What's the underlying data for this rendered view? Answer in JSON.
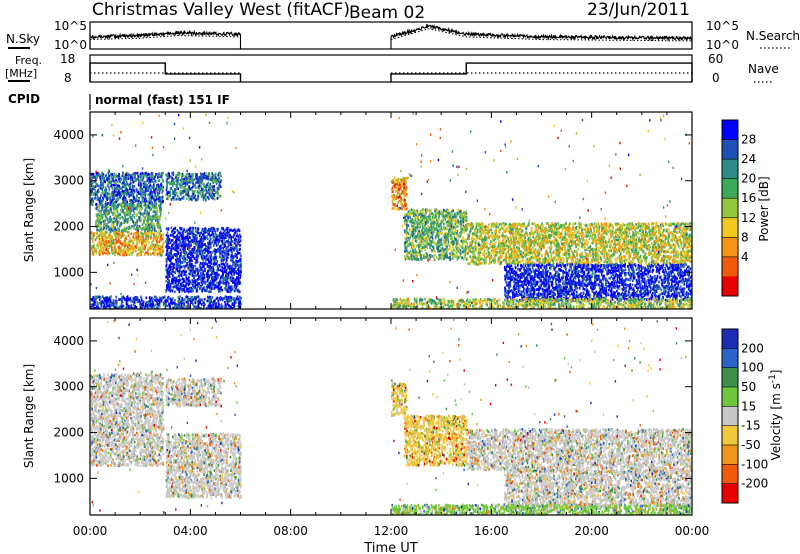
{
  "header": {
    "title": "Christmas Valley West (fitACF)",
    "beam": "Beam 02",
    "date": "23/Jun/2011"
  },
  "panel_labels": {
    "nsky": "N.Sky",
    "nsearch": "N.Search",
    "freq": "Freq.",
    "freq_unit": "[MHz]",
    "nave": "Nave",
    "cpid": "CPID",
    "cpid_text": "normal (fast) 151 IF",
    "time_axis": "Time UT"
  },
  "chart_data": [
    {
      "type": "line",
      "title": "Noise",
      "ylabel_left": "N.Sky",
      "ylabel_right": "N.Search",
      "left_ticks": [
        "10^5",
        "10^0"
      ],
      "right_ticks": [
        "10^5",
        "10^0"
      ],
      "x_units": "hours UT",
      "segments": [
        [
          0,
          6
        ],
        [
          12,
          24
        ]
      ],
      "left_level_profile": [
        {
          "x": 0,
          "y": 0.45
        },
        {
          "x": 2,
          "y": 0.5
        },
        {
          "x": 3.5,
          "y": 0.6
        },
        {
          "x": 6,
          "y": 0.55
        },
        {
          "x": 12,
          "y": 0.45
        },
        {
          "x": 13.5,
          "y": 0.85
        },
        {
          "x": 15,
          "y": 0.55
        },
        {
          "x": 18,
          "y": 0.45
        },
        {
          "x": 24,
          "y": 0.4
        }
      ]
    },
    {
      "type": "line",
      "title": "Frequency / Nave",
      "ylabel_left": "Freq. [MHz]",
      "ylabel_right": "Nave",
      "left_ticks": [
        "18",
        "8"
      ],
      "right_ticks": [
        "60",
        "0"
      ],
      "left_range": [
        8,
        18
      ],
      "right_range": [
        0,
        60
      ],
      "segments": [
        [
          0,
          6
        ],
        [
          12,
          24
        ]
      ],
      "freq_steps": [
        {
          "x0": 0,
          "x1": 3,
          "y": 15
        },
        {
          "x0": 3,
          "x1": 6,
          "y": 11
        },
        {
          "x0": 12,
          "x1": 15,
          "y": 11
        },
        {
          "x0": 15,
          "x1": 24,
          "y": 15
        }
      ],
      "nave_level": 20
    },
    {
      "type": "heatmap",
      "title": "Power",
      "xlabel": "",
      "ylabel": "Slant Range [km]",
      "x_range": [
        0,
        24
      ],
      "ylim": [
        200,
        4500
      ],
      "x_ticks": [
        "00:00",
        "04:00",
        "08:00",
        "12:00",
        "16:00",
        "20:00",
        "00:00"
      ],
      "y_ticks": [
        1000,
        2000,
        3000,
        4000
      ],
      "colorbar_label": "Power [dB]",
      "colorbar_ticks": [
        4,
        8,
        12,
        16,
        20,
        24,
        28
      ],
      "colorbar_colors": [
        "#0000ff",
        "#1e50b4",
        "#2f8a8a",
        "#3caa5a",
        "#96c83c",
        "#f0c81e",
        "#f59614",
        "#f05a0a",
        "#e60000"
      ],
      "scatter_regions": [
        {
          "x0": 0.0,
          "x1": 2.9,
          "y0": 2500,
          "y1": 3200,
          "level": 0.8
        },
        {
          "x0": 0.2,
          "x1": 2.8,
          "y0": 1900,
          "y1": 2500,
          "level": 0.65
        },
        {
          "x0": 0.0,
          "x1": 2.9,
          "y0": 1400,
          "y1": 1900,
          "level": 0.35
        },
        {
          "x0": 3.0,
          "x1": 6.0,
          "y0": 600,
          "y1": 2000,
          "level": 0.95
        },
        {
          "x0": 3.0,
          "x1": 5.2,
          "y0": 2600,
          "y1": 3200,
          "level": 0.75
        },
        {
          "x0": 0.0,
          "x1": 6.0,
          "y0": 200,
          "y1": 500,
          "level": 0.9
        },
        {
          "x0": 12.0,
          "x1": 12.6,
          "y0": 2400,
          "y1": 3100,
          "level": 0.3
        },
        {
          "x0": 12.5,
          "x1": 15.0,
          "y0": 1300,
          "y1": 2400,
          "level": 0.6
        },
        {
          "x0": 15.0,
          "x1": 24.0,
          "y0": 1200,
          "y1": 2100,
          "level": 0.45
        },
        {
          "x0": 16.5,
          "x1": 24.0,
          "y0": 400,
          "y1": 1200,
          "level": 0.95
        },
        {
          "x0": 12.0,
          "x1": 24.0,
          "y0": 200,
          "y1": 450,
          "level": 0.5
        }
      ]
    },
    {
      "type": "heatmap",
      "title": "Velocity",
      "xlabel": "Time UT",
      "ylabel": "Slant Range [km]",
      "x_range": [
        0,
        24
      ],
      "ylim": [
        200,
        4500
      ],
      "x_ticks": [
        "00:00",
        "04:00",
        "08:00",
        "12:00",
        "16:00",
        "20:00",
        "00:00"
      ],
      "y_ticks": [
        1000,
        2000,
        3000,
        4000
      ],
      "colorbar_label": "Velocity [m s^-1]",
      "colorbar_ticks": [
        200,
        100,
        50,
        15,
        -15,
        -50,
        -100,
        -200
      ],
      "colorbar_colors": [
        "#1c2db4",
        "#2a64c8",
        "#3f8f4a",
        "#6fc83c",
        "#c8c8c8",
        "#f0c83c",
        "#f0961e",
        "#f05a0a",
        "#e60000"
      ],
      "scatter_regions": [
        {
          "x0": 0.0,
          "x1": 2.9,
          "y0": 1900,
          "y1": 3300,
          "level": 0.5
        },
        {
          "x0": 0.0,
          "x1": 2.9,
          "y0": 1300,
          "y1": 1900,
          "level": 0.5
        },
        {
          "x0": 3.0,
          "x1": 6.0,
          "y0": 600,
          "y1": 2000,
          "level": 0.5
        },
        {
          "x0": 3.0,
          "x1": 5.2,
          "y0": 2600,
          "y1": 3200,
          "level": 0.5
        },
        {
          "x0": 12.0,
          "x1": 12.6,
          "y0": 2400,
          "y1": 3100,
          "level": 0.4
        },
        {
          "x0": 12.5,
          "x1": 15.0,
          "y0": 1300,
          "y1": 2400,
          "level": 0.38
        },
        {
          "x0": 15.0,
          "x1": 24.0,
          "y0": 1200,
          "y1": 2100,
          "level": 0.5
        },
        {
          "x0": 16.5,
          "x1": 24.0,
          "y0": 400,
          "y1": 1200,
          "level": 0.5
        },
        {
          "x0": 12.0,
          "x1": 24.0,
          "y0": 200,
          "y1": 450,
          "level": 0.58
        }
      ]
    }
  ]
}
